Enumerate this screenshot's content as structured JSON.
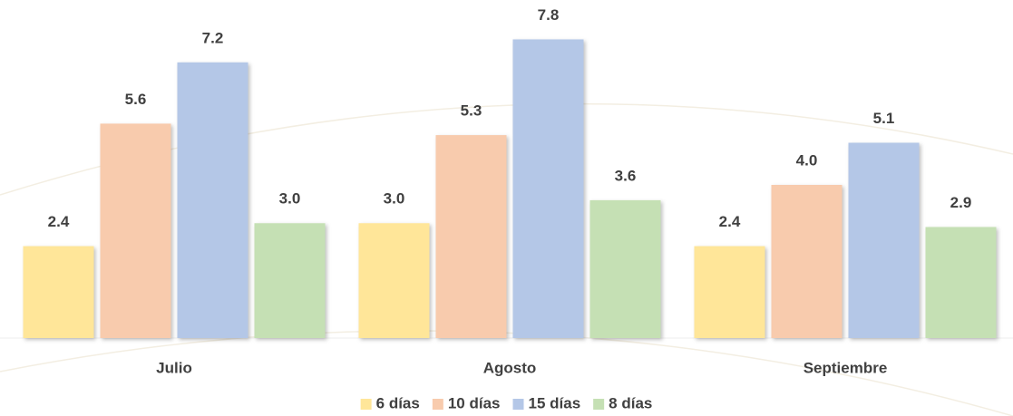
{
  "chart_data": {
    "type": "bar",
    "categories": [
      "Julio",
      "Agosto",
      "Septiembre"
    ],
    "series": [
      {
        "name": "6 días",
        "color": "#ffe699",
        "values": [
          2.4,
          3.0,
          2.4
        ],
        "value_labels": [
          "2.4",
          "3.0",
          "2.4"
        ]
      },
      {
        "name": "10 días",
        "color": "#f8cbad",
        "values": [
          5.6,
          5.3,
          4.0
        ],
        "value_labels": [
          "5.6",
          "5.3",
          "4.0"
        ]
      },
      {
        "name": "15 días",
        "color": "#b4c7e7",
        "values": [
          7.2,
          7.8,
          5.1
        ],
        "value_labels": [
          "7.2",
          "7.8",
          "5.1"
        ]
      },
      {
        "name": "8 días",
        "color": "#c5e0b4",
        "values": [
          3.0,
          3.6,
          2.9
        ],
        "value_labels": [
          "3.0",
          "3.6",
          "2.9"
        ]
      }
    ],
    "ylim": [
      0,
      8
    ],
    "legend": "bottom"
  }
}
